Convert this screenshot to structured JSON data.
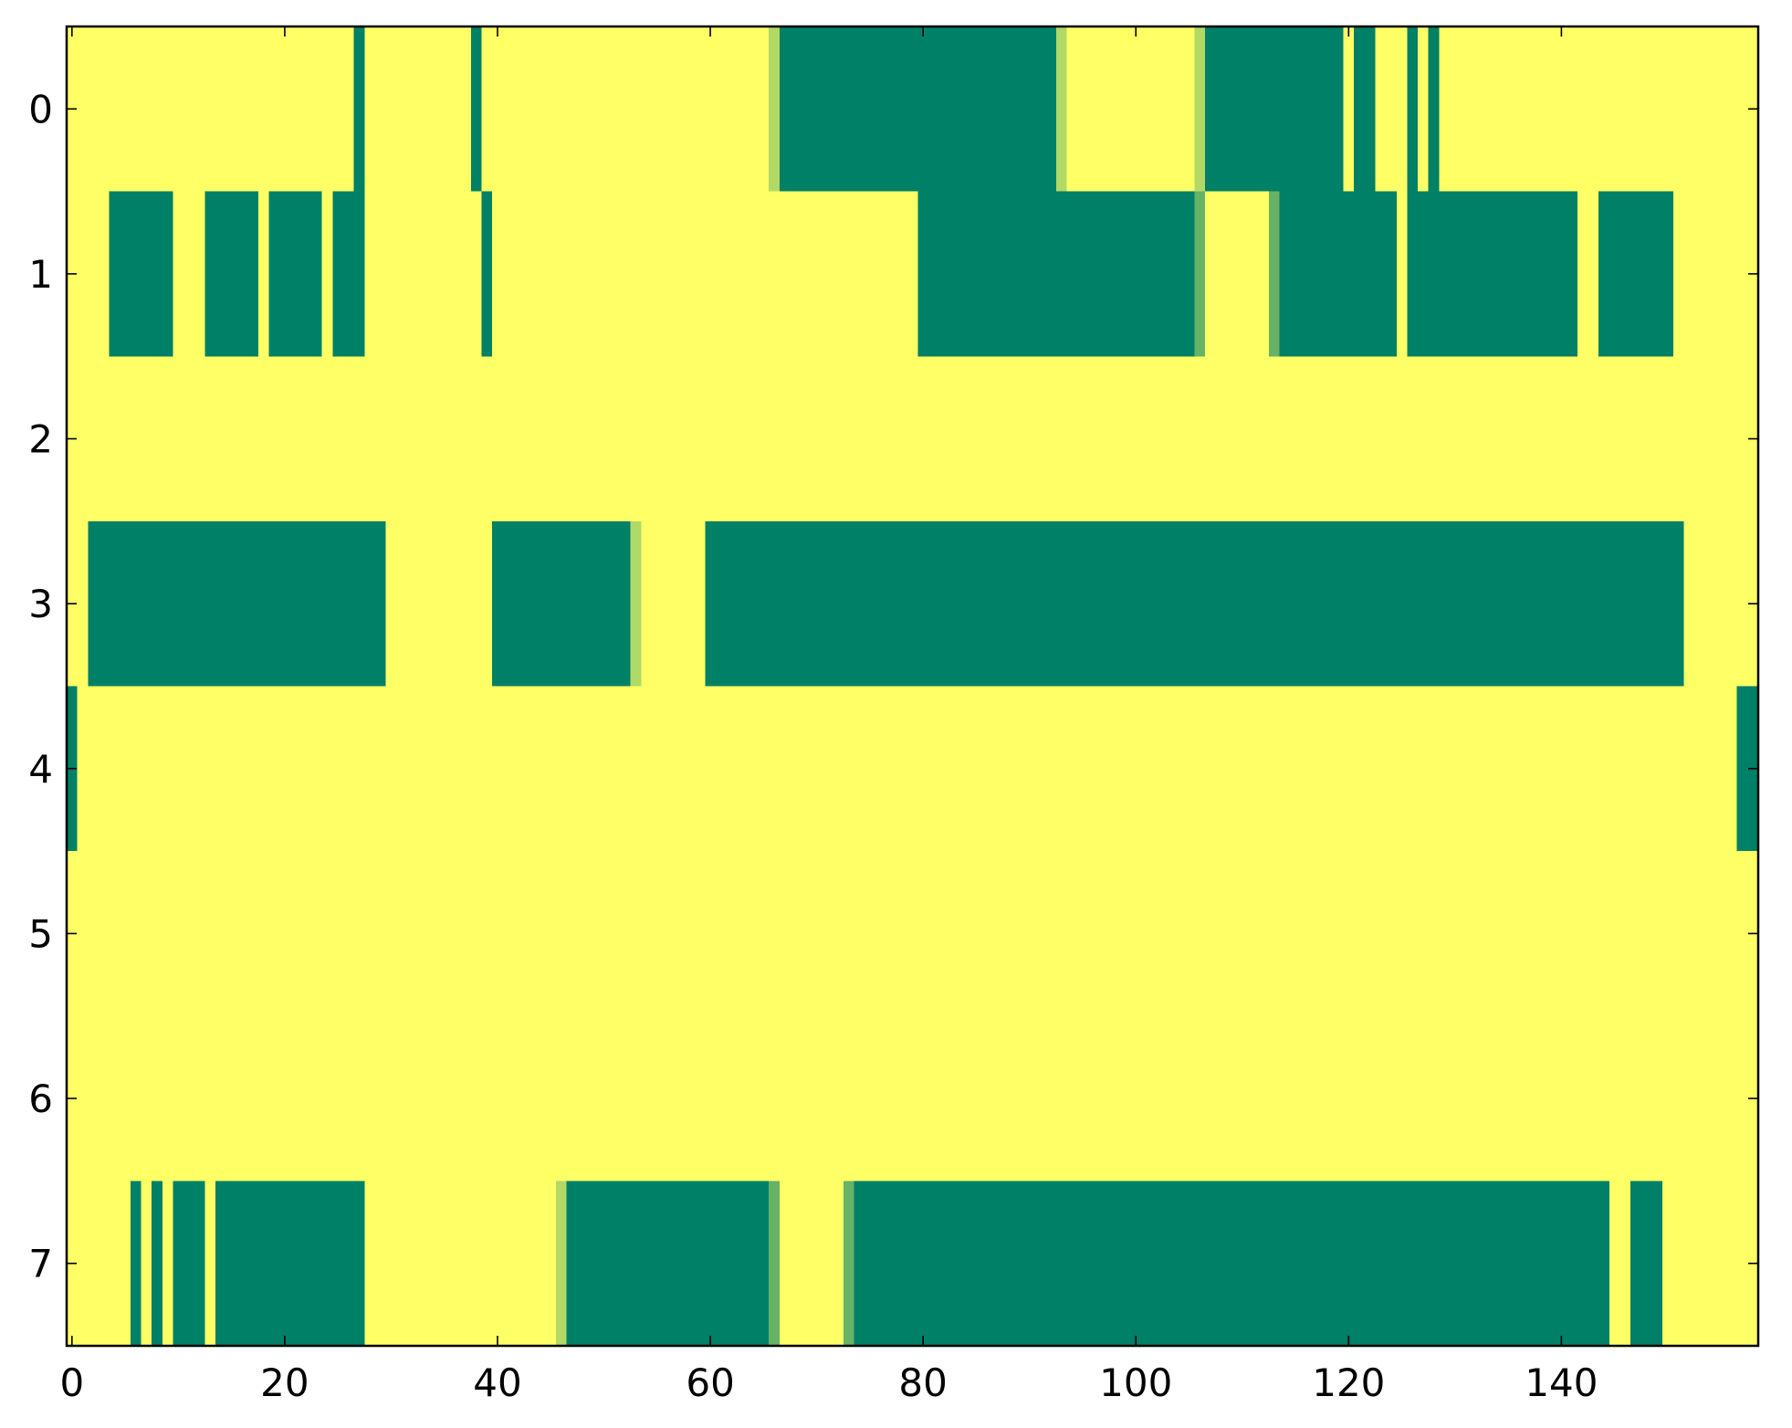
{
  "chart_data": {
    "type": "heatmap",
    "title": "",
    "xlabel": "",
    "ylabel": "",
    "xlim": [
      -0.5,
      158.5
    ],
    "ylim": [
      7.5,
      -0.5
    ],
    "n_cols": 159,
    "n_rows": 8,
    "x_ticks": [
      0,
      20,
      40,
      60,
      80,
      100,
      120,
      140
    ],
    "x_tick_labels": [
      "0",
      "20",
      "40",
      "60",
      "80",
      "100",
      "120",
      "140"
    ],
    "y_ticks": [
      0,
      1,
      2,
      3,
      4,
      5,
      6,
      7
    ],
    "y_tick_labels": [
      "0",
      "1",
      "2",
      "3",
      "4",
      "5",
      "6",
      "7"
    ],
    "colormap": "summer",
    "background_value": 1,
    "colors": {
      "background": "#ffff66",
      "dark": "#008066",
      "light_transition": "#b2d966",
      "mid_transition": "#66b266"
    },
    "grid": false,
    "legend": "none",
    "rows": [
      {
        "row": 0,
        "runs": [
          {
            "start": 27,
            "end": 27,
            "value": 0
          },
          {
            "start": 38,
            "end": 38,
            "value": 0
          },
          {
            "start": 66,
            "end": 66,
            "value": 0.7
          },
          {
            "start": 67,
            "end": 92,
            "value": 0
          },
          {
            "start": 93,
            "end": 93,
            "value": 0.7
          },
          {
            "start": 106,
            "end": 106,
            "value": 0.7
          },
          {
            "start": 107,
            "end": 119,
            "value": 0
          },
          {
            "start": 121,
            "end": 122,
            "value": 0
          },
          {
            "start": 126,
            "end": 126,
            "value": 0
          },
          {
            "start": 128,
            "end": 128,
            "value": 0
          }
        ]
      },
      {
        "row": 1,
        "runs": [
          {
            "start": 4,
            "end": 9,
            "value": 0
          },
          {
            "start": 13,
            "end": 17,
            "value": 0
          },
          {
            "start": 19,
            "end": 23,
            "value": 0
          },
          {
            "start": 25,
            "end": 27,
            "value": 0
          },
          {
            "start": 39,
            "end": 39,
            "value": 0
          },
          {
            "start": 80,
            "end": 105,
            "value": 0
          },
          {
            "start": 106,
            "end": 106,
            "value": 0.4
          },
          {
            "start": 113,
            "end": 113,
            "value": 0.4
          },
          {
            "start": 114,
            "end": 124,
            "value": 0
          },
          {
            "start": 126,
            "end": 141,
            "value": 0
          },
          {
            "start": 144,
            "end": 150,
            "value": 0
          }
        ]
      },
      {
        "row": 2,
        "runs": []
      },
      {
        "row": 3,
        "runs": [
          {
            "start": 2,
            "end": 29,
            "value": 0
          },
          {
            "start": 40,
            "end": 52,
            "value": 0
          },
          {
            "start": 53,
            "end": 53,
            "value": 0.7
          },
          {
            "start": 60,
            "end": 151,
            "value": 0
          }
        ]
      },
      {
        "row": 4,
        "runs": [
          {
            "start": 0,
            "end": 0,
            "value": 0
          },
          {
            "start": 157,
            "end": 158,
            "value": 0
          }
        ]
      },
      {
        "row": 5,
        "runs": []
      },
      {
        "row": 6,
        "runs": []
      },
      {
        "row": 7,
        "runs": [
          {
            "start": 6,
            "end": 6,
            "value": 0
          },
          {
            "start": 8,
            "end": 8,
            "value": 0
          },
          {
            "start": 10,
            "end": 12,
            "value": 0
          },
          {
            "start": 14,
            "end": 27,
            "value": 0
          },
          {
            "start": 46,
            "end": 46,
            "value": 0.7
          },
          {
            "start": 47,
            "end": 65,
            "value": 0
          },
          {
            "start": 66,
            "end": 66,
            "value": 0.4
          },
          {
            "start": 73,
            "end": 73,
            "value": 0.4
          },
          {
            "start": 74,
            "end": 144,
            "value": 0
          },
          {
            "start": 147,
            "end": 149,
            "value": 0
          }
        ]
      }
    ]
  }
}
